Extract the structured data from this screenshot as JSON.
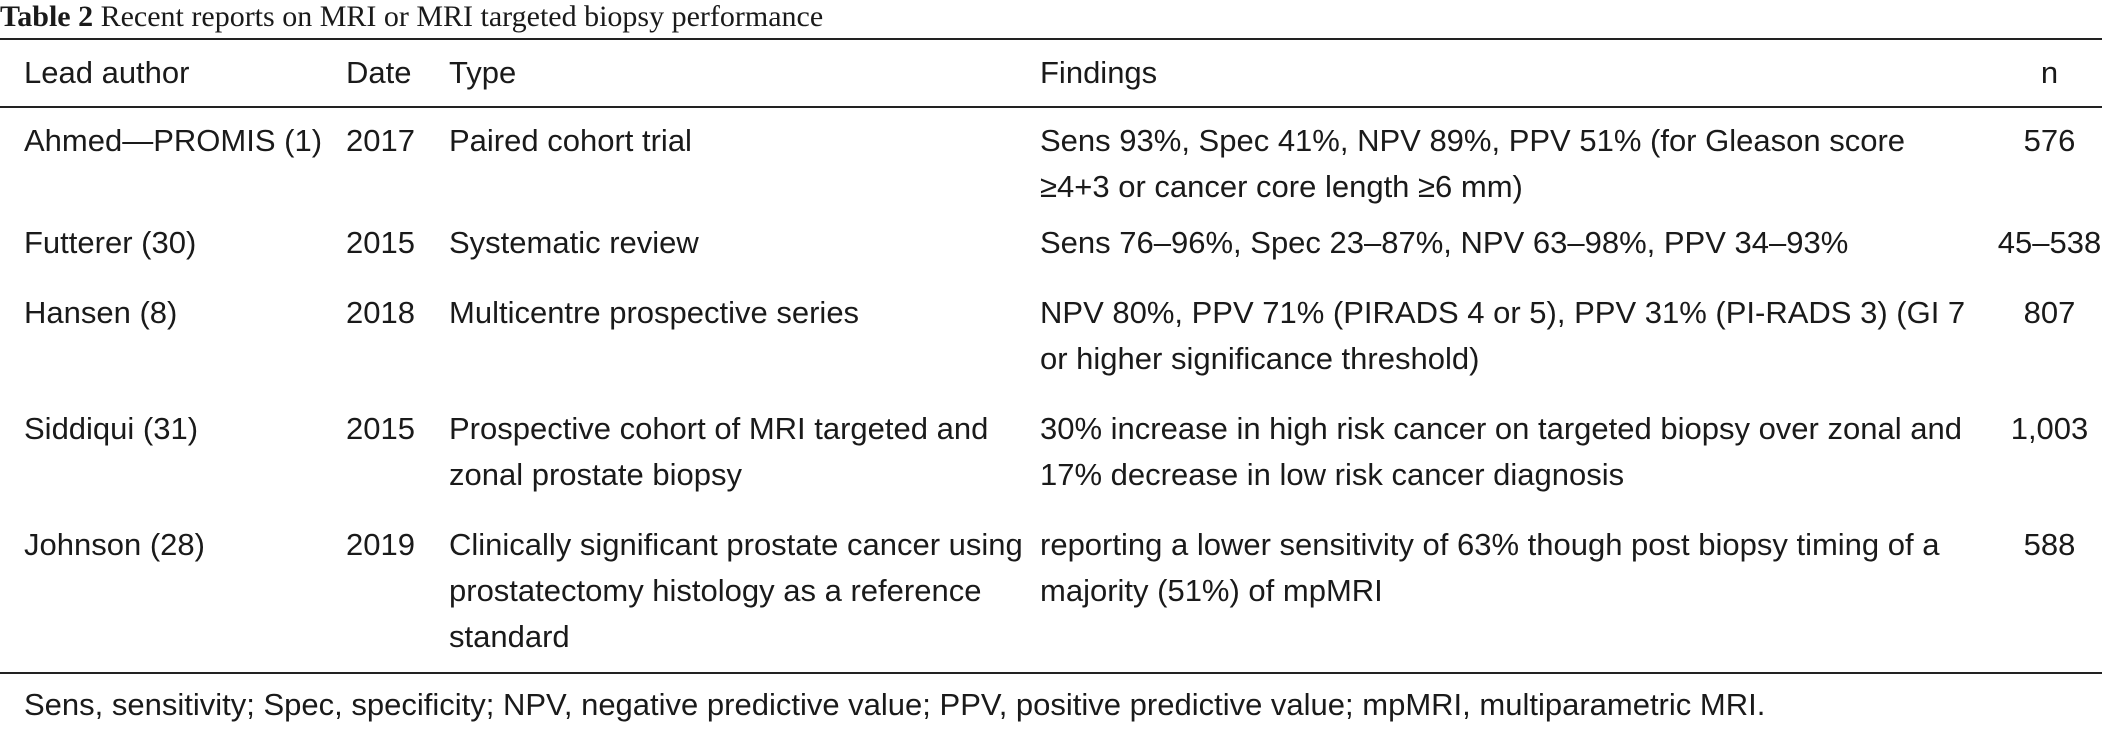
{
  "caption": {
    "label": "Table 2",
    "text": "Recent reports on MRI or MRI targeted biopsy performance"
  },
  "table": {
    "headers": {
      "author": "Lead author",
      "date": "Date",
      "type": "Type",
      "findings": "Findings",
      "n": "n"
    },
    "rows": [
      {
        "author": "Ahmed—PROMIS (1)",
        "date": "2017",
        "type": "Paired cohort trial",
        "findings": "Sens 93%, Spec 41%, NPV 89%, PPV 51% (for Gleason score ≥4+3 or cancer core length ≥6 mm)",
        "n": "576"
      },
      {
        "author": "Futterer (30)",
        "date": "2015",
        "type": "Systematic review",
        "findings": "Sens 76–96%, Spec 23–87%, NPV 63–98%, PPV 34–93%",
        "n": "45–538"
      },
      {
        "author": "Hansen (8)",
        "date": "2018",
        "type": "Multicentre prospective series",
        "findings": "NPV 80%, PPV 71% (PIRADS 4 or 5), PPV 31% (PI-RADS 3) (GI 7 or higher significance threshold)",
        "n": "807"
      },
      {
        "author": "Siddiqui (31)",
        "date": "2015",
        "type": "Prospective cohort of MRI targeted and zonal prostate biopsy",
        "findings": "30% increase in high risk cancer on targeted biopsy over zonal and 17% decrease in low risk cancer diagnosis",
        "n": "1,003"
      },
      {
        "author": "Johnson (28)",
        "date": "2019",
        "type": "Clinically significant prostate cancer using prostatectomy histology as a reference standard",
        "findings": "reporting a lower sensitivity of 63% though post biopsy timing of a majority (51%) of mpMRI",
        "n": "588"
      }
    ]
  },
  "footnote": "Sens, sensitivity; Spec, specificity; NPV, negative predictive value; PPV, positive predictive value; mpMRI, multiparametric MRI."
}
